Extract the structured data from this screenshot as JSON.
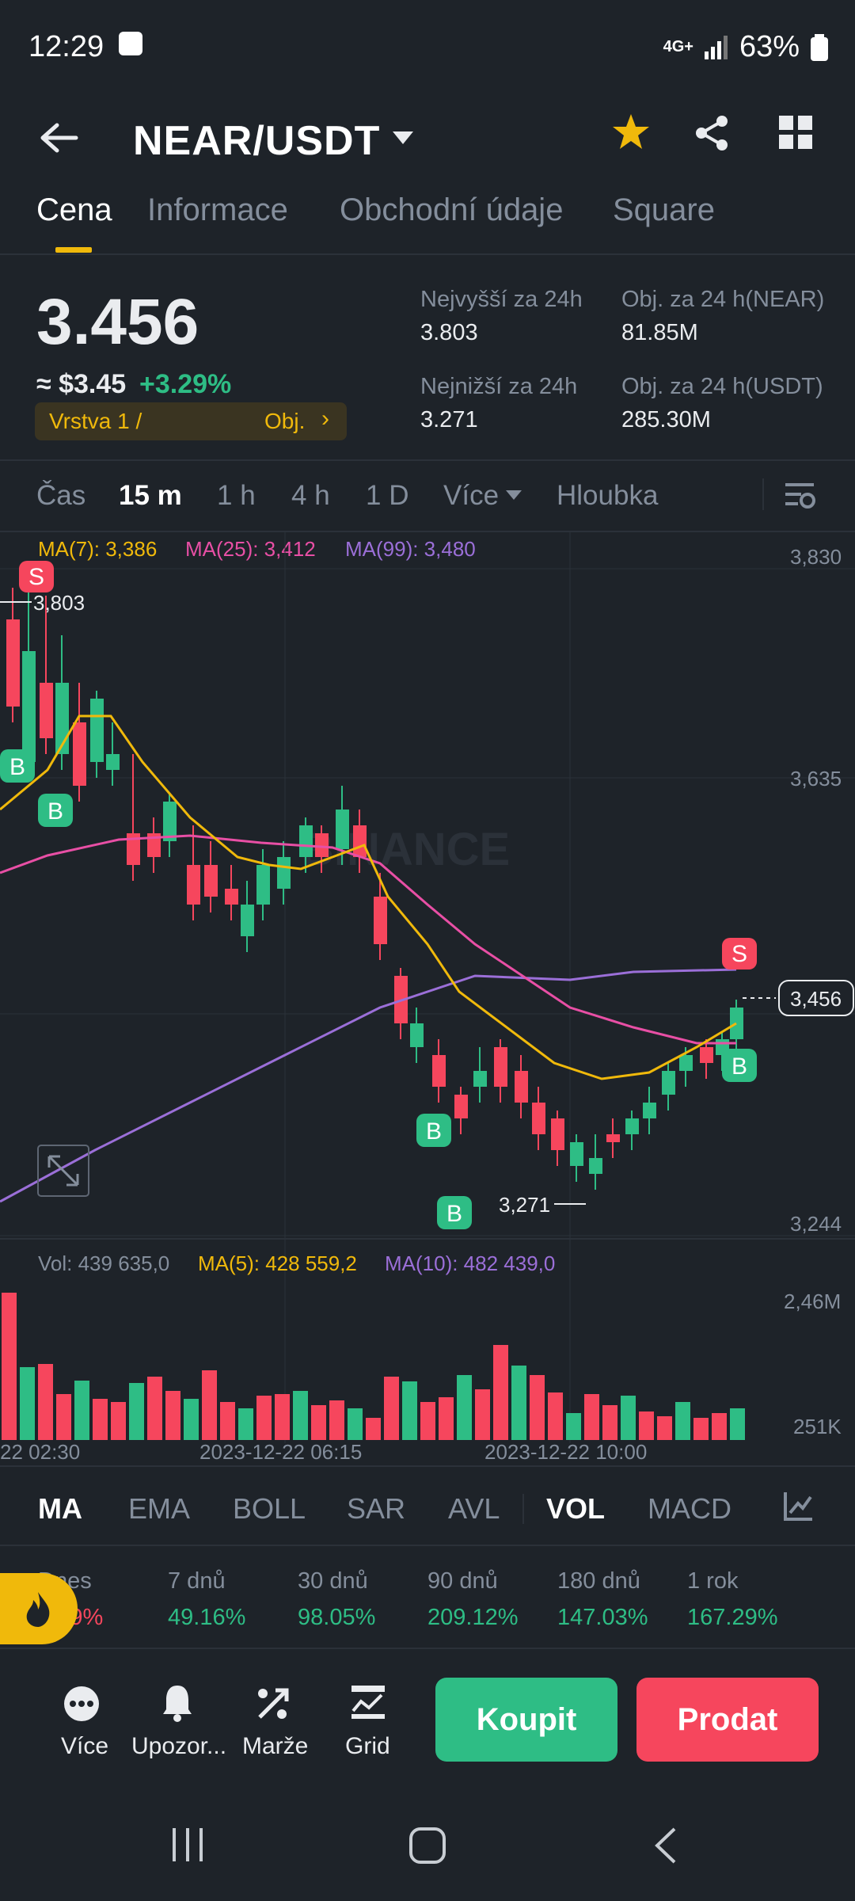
{
  "status_bar": {
    "time": "12:29",
    "battery": "63%",
    "network": "4G+"
  },
  "header": {
    "pair": "NEAR/USDT"
  },
  "tabs": [
    "Cena",
    "Informace",
    "Obchodní údaje",
    "Square"
  ],
  "price": {
    "last": "3.456",
    "usd": "≈ $3.45",
    "change": "+3.29%",
    "layer_label": "Vrstva 1 /",
    "layer_action": "Obj.",
    "high_label": "Nejvyšší za 24h",
    "high": "3.803",
    "low_label": "Nejnižší za 24h",
    "low": "3.271",
    "vol_near_label": "Obj. za 24 h(NEAR)",
    "vol_near": "81.85M",
    "vol_usdt_label": "Obj. za 24 h(USDT)",
    "vol_usdt": "285.30M"
  },
  "timeframes": [
    "Čas",
    "15 m",
    "1 h",
    "4 h",
    "1 D",
    "Více",
    "Hloubka"
  ],
  "chart": {
    "ma7": "MA(7): 3,386",
    "ma25": "MA(25): 3,412",
    "ma99": "MA(99): 3,480",
    "axis": [
      "3,830",
      "3,635",
      "3,244"
    ],
    "current_price": "3,456",
    "high_marker": "3,803",
    "low_marker": "3,271",
    "watermark": "BINANCE",
    "colors": {
      "up": "#2ebd85",
      "down": "#f6465d",
      "ma7": "#f0b90b",
      "ma25": "#e84fa5",
      "ma99": "#9b6fd8"
    }
  },
  "volume": {
    "vol": "Vol: 439 635,0",
    "ma5": "MA(5): 428 559,2",
    "ma10": "MA(10): 482 439,0",
    "axis_top": "2,46M",
    "axis_bottom": "251K",
    "time_labels": [
      "22 02:30",
      "2023-12-22 06:15",
      "2023-12-22 10:00"
    ]
  },
  "indicators": [
    "MA",
    "EMA",
    "BOLL",
    "SAR",
    "AVL",
    "VOL",
    "MACD"
  ],
  "performance": {
    "labels": [
      "Dnes",
      "7 dnů",
      "30 dnů",
      "90 dnů",
      "180 dnů",
      "1 rok"
    ],
    "values": [
      "3.29%",
      "49.16%",
      "98.05%",
      "209.12%",
      "147.03%",
      "167.29%"
    ]
  },
  "actions": {
    "more": "Více",
    "alerts": "Upozor...",
    "margin": "Marže",
    "grid": "Grid"
  },
  "buttons": {
    "buy": "Koupit",
    "sell": "Prodat"
  }
}
